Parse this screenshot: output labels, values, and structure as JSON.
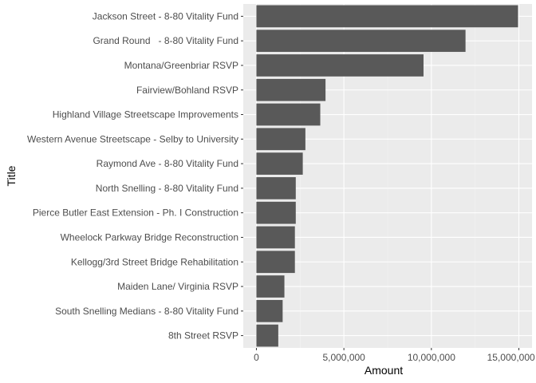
{
  "chart_data": {
    "type": "bar",
    "orientation": "horizontal",
    "xlabel": "Amount",
    "ylabel": "Title",
    "xlim": [
      -750000,
      15750000
    ],
    "x_ticks": [
      0,
      5000000,
      10000000,
      15000000
    ],
    "x_tick_labels": [
      "0",
      "5,000,000",
      "10,000,000",
      "15,000,000"
    ],
    "grid": true,
    "legend": "none",
    "categories": [
      "Jackson Street - 8-80 Vitality Fund",
      "Grand Round   - 8-80 Vitality Fund",
      "Montana/Greenbriar RSVP",
      "Fairview/Bohland RSVP",
      "Highland Village Streetscape Improvements",
      "Western Avenue Streetscape - Selby to University",
      "Raymond Ave - 8-80 Vitality Fund",
      "North Snelling - 8-80 Vitality Fund",
      "Pierce Butler East Extension - Ph. I Construction",
      "Wheelock Parkway Bridge Reconstruction",
      "Kellogg/3rd Street Bridge Rehabilitation",
      "Maiden Lane/ Virginia RSVP",
      "South Snelling Medians - 8-80 Vitality Fund",
      "8th Street RSVP"
    ],
    "values": [
      14950000,
      11950000,
      9550000,
      3950000,
      3650000,
      2800000,
      2650000,
      2250000,
      2250000,
      2200000,
      2200000,
      1600000,
      1500000,
      1250000
    ],
    "colors": {
      "panel": "#ebebeb",
      "grid_major": "#ffffff",
      "grid_minor": "#f2f2f2",
      "bar": "#595959",
      "tick_text": "#4d4d4d",
      "tick_mark": "#333333"
    }
  }
}
